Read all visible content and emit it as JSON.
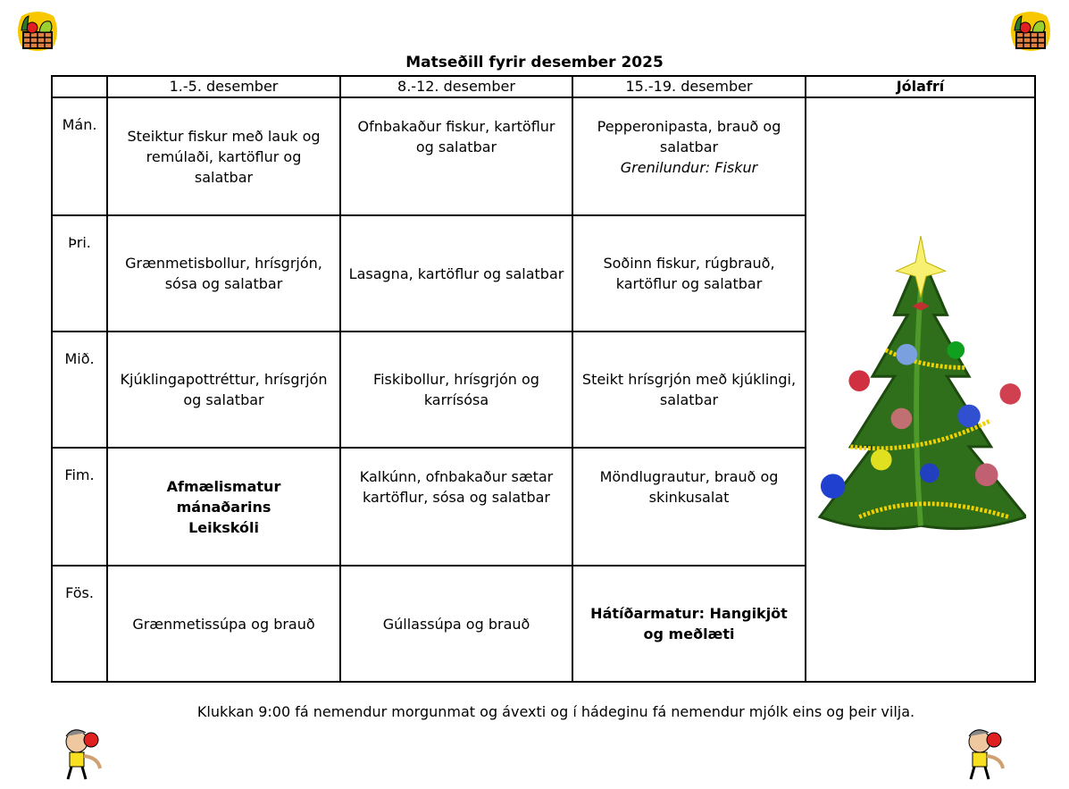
{
  "title": "Matseðill fyrir desember 2025",
  "columns": [
    "",
    "1.-5. desember",
    "8.-12. desember",
    "15.-19. desember",
    "Jólafrí"
  ],
  "rows": [
    {
      "day": "Mán.",
      "cells": [
        {
          "text": "Steiktur fiskur með lauk og remúlaði, kartöflur og salatbar"
        },
        {
          "text": "Ofnbakaður fiskur, kartöflur og salatbar"
        },
        {
          "text": "Pepperonipasta, brauð og salatbar",
          "note": "Grenilundur: Fiskur"
        }
      ]
    },
    {
      "day": "Þri.",
      "cells": [
        {
          "text": "Grænmetisbollur, hrísgrjón, sósa og salatbar"
        },
        {
          "text": "Lasagna, kartöflur og salatbar"
        },
        {
          "text": "Soðinn fiskur, rúgbrauð, kartöflur og salatbar"
        }
      ]
    },
    {
      "day": "Mið.",
      "cells": [
        {
          "text": "Kjúklingapottréttur, hrísgrjón og salatbar"
        },
        {
          "text": "Fiskibollur, hrísgrjón og karrísósa"
        },
        {
          "text": "Steikt hrísgrjón með kjúklingi, salatbar"
        }
      ]
    },
    {
      "day": "Fim.",
      "cells": [
        {
          "text": "Afmælismatur mánaðarins Leikskóli",
          "bold": true
        },
        {
          "text": "Kalkúnn, ofnbakaður sætar kartöflur, sósa og salatbar"
        },
        {
          "text": "Möndlugrautur, brauð og skinkusalat"
        }
      ]
    },
    {
      "day": "Fös.",
      "cells": [
        {
          "text": "Grænmetissúpa og brauð"
        },
        {
          "text": "Gúllassúpa og brauð"
        },
        {
          "text": "Hátíðarmatur: Hangikjöt og meðlæti",
          "bold": true
        }
      ]
    }
  ],
  "footer": "Klukkan 9:00 fá nemendur morgunmat og ávexti og í hádeginu fá nemendur mjólk eins og þeir vilja.",
  "icons": [
    "vegetable-basket-icon",
    "christmas-tree-icon",
    "child-eating-apple-icon"
  ]
}
